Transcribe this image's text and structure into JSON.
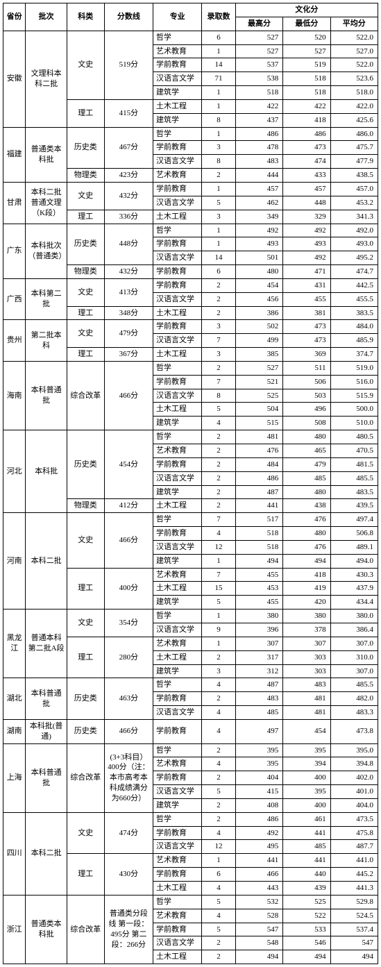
{
  "headers": {
    "province": "省份",
    "batch": "批次",
    "category": "科类",
    "scoreLine": "分数线",
    "major": "专业",
    "admitCount": "录取数",
    "cultureGroup": "文化分",
    "max": "最高分",
    "min": "最低分",
    "avg": "平均分"
  },
  "rows": [
    {
      "p": "安徽",
      "pr": 7,
      "b": "文理科本科二批",
      "br": 7,
      "c": "文史",
      "cr": 5,
      "s": "519分",
      "sr": 5,
      "m": "哲学",
      "n": "6",
      "hi": "527",
      "lo": "520",
      "av": "522.0"
    },
    {
      "m": "艺术教育",
      "n": "1",
      "hi": "527",
      "lo": "527",
      "av": "527.0"
    },
    {
      "m": "学前教育",
      "n": "14",
      "hi": "537",
      "lo": "519",
      "av": "522.0"
    },
    {
      "m": "汉语言文学",
      "n": "71",
      "hi": "538",
      "lo": "518",
      "av": "523.6"
    },
    {
      "m": "建筑学",
      "n": "1",
      "hi": "518",
      "lo": "518",
      "av": "518.0"
    },
    {
      "c": "理工",
      "cr": 2,
      "s": "415分",
      "sr": 2,
      "m": "土木工程",
      "n": "1",
      "hi": "422",
      "lo": "422",
      "av": "422.0"
    },
    {
      "m": "建筑学",
      "n": "8",
      "hi": "437",
      "lo": "418",
      "av": "425.6"
    },
    {
      "p": "福建",
      "pr": 4,
      "b": "普通类本科批",
      "br": 4,
      "c": "历史类",
      "cr": 3,
      "s": "467分",
      "sr": 3,
      "m": "哲学",
      "n": "1",
      "hi": "486",
      "lo": "486",
      "av": "486.0"
    },
    {
      "m": "学前教育",
      "n": "3",
      "hi": "478",
      "lo": "473",
      "av": "475.7"
    },
    {
      "m": "汉语言文学",
      "n": "8",
      "hi": "483",
      "lo": "474",
      "av": "477.9"
    },
    {
      "c": "物理类",
      "cr": 1,
      "s": "423分",
      "sr": 1,
      "m": "艺术教育",
      "n": "2",
      "hi": "444",
      "lo": "433",
      "av": "438.5"
    },
    {
      "p": "甘肃",
      "pr": 3,
      "b": "本科二批普通文理（K段）",
      "br": 3,
      "c": "文史",
      "cr": 2,
      "s": "432分",
      "sr": 2,
      "m": "学前教育",
      "n": "1",
      "hi": "457",
      "lo": "457",
      "av": "457.0"
    },
    {
      "m": "汉语言文学",
      "n": "5",
      "hi": "462",
      "lo": "448",
      "av": "453.2"
    },
    {
      "c": "理工",
      "cr": 1,
      "s": "336分",
      "sr": 1,
      "m": "土木工程",
      "n": "3",
      "hi": "349",
      "lo": "329",
      "av": "341.3"
    },
    {
      "p": "广东",
      "pr": 4,
      "b": "本科批次（普通类）",
      "br": 4,
      "c": "历史类",
      "cr": 3,
      "s": "448分",
      "sr": 3,
      "m": "哲学",
      "n": "1",
      "hi": "492",
      "lo": "492",
      "av": "492.0"
    },
    {
      "m": "学前教育",
      "n": "1",
      "hi": "493",
      "lo": "493",
      "av": "493.0"
    },
    {
      "m": "汉语言文学",
      "n": "14",
      "hi": "501",
      "lo": "492",
      "av": "495.2"
    },
    {
      "c": "物理类",
      "cr": 1,
      "s": "432分",
      "sr": 1,
      "m": "学前教育",
      "n": "6",
      "hi": "480",
      "lo": "471",
      "av": "474.7"
    },
    {
      "p": "广西",
      "pr": 3,
      "b": "本科第二批",
      "br": 3,
      "c": "文史",
      "cr": 2,
      "s": "413分",
      "sr": 2,
      "m": "学前教育",
      "n": "2",
      "hi": "454",
      "lo": "431",
      "av": "442.5"
    },
    {
      "m": "汉语言文学",
      "n": "2",
      "hi": "456",
      "lo": "455",
      "av": "455.5"
    },
    {
      "c": "理工",
      "cr": 1,
      "s": "348分",
      "sr": 1,
      "m": "土木工程",
      "n": "2",
      "hi": "386",
      "lo": "381",
      "av": "383.5"
    },
    {
      "p": "贵州",
      "pr": 3,
      "b": "第二批本科",
      "br": 3,
      "c": "文史",
      "cr": 2,
      "s": "479分",
      "sr": 2,
      "m": "学前教育",
      "n": "3",
      "hi": "502",
      "lo": "473",
      "av": "484.0"
    },
    {
      "m": "汉语言文学",
      "n": "7",
      "hi": "499",
      "lo": "473",
      "av": "485.9"
    },
    {
      "c": "理工",
      "cr": 1,
      "s": "367分",
      "sr": 1,
      "m": "土木工程",
      "n": "3",
      "hi": "385",
      "lo": "369",
      "av": "374.7"
    },
    {
      "p": "海南",
      "pr": 5,
      "b": "本科普通批",
      "br": 5,
      "c": "综合改革",
      "cr": 5,
      "s": "466分",
      "sr": 5,
      "m": "哲学",
      "n": "2",
      "hi": "527",
      "lo": "511",
      "av": "519.0"
    },
    {
      "m": "学前教育",
      "n": "7",
      "hi": "521",
      "lo": "506",
      "av": "516.0"
    },
    {
      "m": "汉语言文学",
      "n": "8",
      "hi": "525",
      "lo": "503",
      "av": "515.9"
    },
    {
      "m": "土木工程",
      "n": "5",
      "hi": "504",
      "lo": "496",
      "av": "500.0"
    },
    {
      "m": "建筑学",
      "n": "4",
      "hi": "515",
      "lo": "508",
      "av": "510.0"
    },
    {
      "p": "河北",
      "pr": 6,
      "b": "本科批",
      "br": 6,
      "c": "历史类",
      "cr": 5,
      "s": "454分",
      "sr": 5,
      "m": "哲学",
      "n": "2",
      "hi": "481",
      "lo": "480",
      "av": "480.5"
    },
    {
      "m": "艺术教育",
      "n": "2",
      "hi": "476",
      "lo": "465",
      "av": "470.5"
    },
    {
      "m": "学前教育",
      "n": "2",
      "hi": "484",
      "lo": "479",
      "av": "481.5"
    },
    {
      "m": "汉语言文学",
      "n": "2",
      "hi": "486",
      "lo": "485",
      "av": "485.5"
    },
    {
      "m": "建筑学",
      "n": "2",
      "hi": "487",
      "lo": "480",
      "av": "483.5"
    },
    {
      "c": "物理类",
      "cr": 1,
      "s": "412分",
      "sr": 1,
      "m": "土木工程",
      "n": "2",
      "hi": "441",
      "lo": "438",
      "av": "439.5"
    },
    {
      "p": "河南",
      "pr": 7,
      "b": "本科二批",
      "br": 7,
      "c": "文史",
      "cr": 4,
      "s": "466分",
      "sr": 4,
      "m": "哲学",
      "n": "7",
      "hi": "517",
      "lo": "476",
      "av": "497.4"
    },
    {
      "m": "学前教育",
      "n": "4",
      "hi": "518",
      "lo": "480",
      "av": "506.8"
    },
    {
      "m": "汉语言文学",
      "n": "12",
      "hi": "518",
      "lo": "476",
      "av": "489.1"
    },
    {
      "m": "建筑学",
      "n": "1",
      "hi": "494",
      "lo": "494",
      "av": "494.0"
    },
    {
      "c": "理工",
      "cr": 3,
      "s": "400分",
      "sr": 3,
      "m": "艺术教育",
      "n": "7",
      "hi": "455",
      "lo": "418",
      "av": "430.3"
    },
    {
      "m": "土木工程",
      "n": "15",
      "hi": "453",
      "lo": "419",
      "av": "437.9"
    },
    {
      "m": "建筑学",
      "n": "5",
      "hi": "455",
      "lo": "420",
      "av": "434.4"
    },
    {
      "p": "黑龙江",
      "pr": 5,
      "b": "普通本科第二批A段",
      "br": 5,
      "c": "文史",
      "cr": 2,
      "s": "354分",
      "sr": 2,
      "m": "哲学",
      "n": "1",
      "hi": "380",
      "lo": "380",
      "av": "380.0"
    },
    {
      "m": "汉语言文学",
      "n": "9",
      "hi": "396",
      "lo": "378",
      "av": "386.4"
    },
    {
      "c": "理工",
      "cr": 3,
      "s": "280分",
      "sr": 3,
      "m": "艺术教育",
      "n": "1",
      "hi": "307",
      "lo": "307",
      "av": "307.0"
    },
    {
      "m": "土木工程",
      "n": "2",
      "hi": "317",
      "lo": "303",
      "av": "310.0"
    },
    {
      "m": "建筑学",
      "n": "3",
      "hi": "312",
      "lo": "303",
      "av": "307.0"
    },
    {
      "p": "湖北",
      "pr": 3,
      "b": "本科普通批",
      "br": 3,
      "c": "历史类",
      "cr": 3,
      "s": "463分",
      "sr": 3,
      "m": "哲学",
      "n": "4",
      "hi": "487",
      "lo": "483",
      "av": "485.5"
    },
    {
      "m": "学前教育",
      "n": "2",
      "hi": "483",
      "lo": "481",
      "av": "482.0"
    },
    {
      "m": "汉语言文学",
      "n": "4",
      "hi": "485",
      "lo": "481",
      "av": "483.3"
    },
    {
      "p": "湖南",
      "pr": 1,
      "b": "本科批(普通)",
      "br": 1,
      "c": "历史类",
      "cr": 1,
      "s": "466分",
      "sr": 1,
      "m": "学前教育",
      "n": "4",
      "hi": "497",
      "lo": "454",
      "av": "473.8"
    },
    {
      "p": "上海",
      "pr": 5,
      "b": "本科普通批",
      "br": 5,
      "c": "综合改革",
      "cr": 5,
      "s": "(3+3科目）400分（注：本市高考本科成绩满分为660分）",
      "sr": 5,
      "m": "哲学",
      "n": "2",
      "hi": "395",
      "lo": "395",
      "av": "395.0"
    },
    {
      "m": "艺术教育",
      "n": "4",
      "hi": "395",
      "lo": "394",
      "av": "394.8"
    },
    {
      "m": "学前教育",
      "n": "2",
      "hi": "404",
      "lo": "400",
      "av": "402.0"
    },
    {
      "m": "汉语言文学",
      "n": "5",
      "hi": "415",
      "lo": "395",
      "av": "401.0"
    },
    {
      "m": "建筑学",
      "n": "2",
      "hi": "408",
      "lo": "400",
      "av": "404.0"
    },
    {
      "p": "四川",
      "pr": 6,
      "b": "本科二批",
      "br": 6,
      "c": "文史",
      "cr": 3,
      "s": "474分",
      "sr": 3,
      "m": "哲学",
      "n": "2",
      "hi": "486",
      "lo": "461",
      "av": "473.5"
    },
    {
      "m": "学前教育",
      "n": "4",
      "hi": "492",
      "lo": "441",
      "av": "475.8"
    },
    {
      "m": "汉语言文学",
      "n": "12",
      "hi": "495",
      "lo": "485",
      "av": "487.7"
    },
    {
      "c": "理工",
      "cr": 3,
      "s": "430分",
      "sr": 3,
      "m": "艺术教育",
      "n": "1",
      "hi": "441",
      "lo": "441",
      "av": "441.0"
    },
    {
      "m": "学前教育",
      "n": "6",
      "hi": "466",
      "lo": "440",
      "av": "445.2"
    },
    {
      "m": "土木工程",
      "n": "4",
      "hi": "443",
      "lo": "439",
      "av": "441.3"
    },
    {
      "p": "浙江",
      "pr": 5,
      "b": "普通类本科批",
      "br": 5,
      "c": "综合改革",
      "cr": 5,
      "s": "普通类分段线 第一段：495分 第二段：266分",
      "sr": 5,
      "m": "哲学",
      "n": "5",
      "hi": "532",
      "lo": "525",
      "av": "529.8"
    },
    {
      "m": "艺术教育",
      "n": "4",
      "hi": "528",
      "lo": "522",
      "av": "524.5"
    },
    {
      "m": "学前教育",
      "n": "5",
      "hi": "547",
      "lo": "533",
      "av": "537.4"
    },
    {
      "m": "汉语言文学",
      "n": "2",
      "hi": "548",
      "lo": "546",
      "av": "547"
    },
    {
      "m": "土木工程",
      "n": "2",
      "hi": "494",
      "lo": "494",
      "av": "494"
    }
  ]
}
